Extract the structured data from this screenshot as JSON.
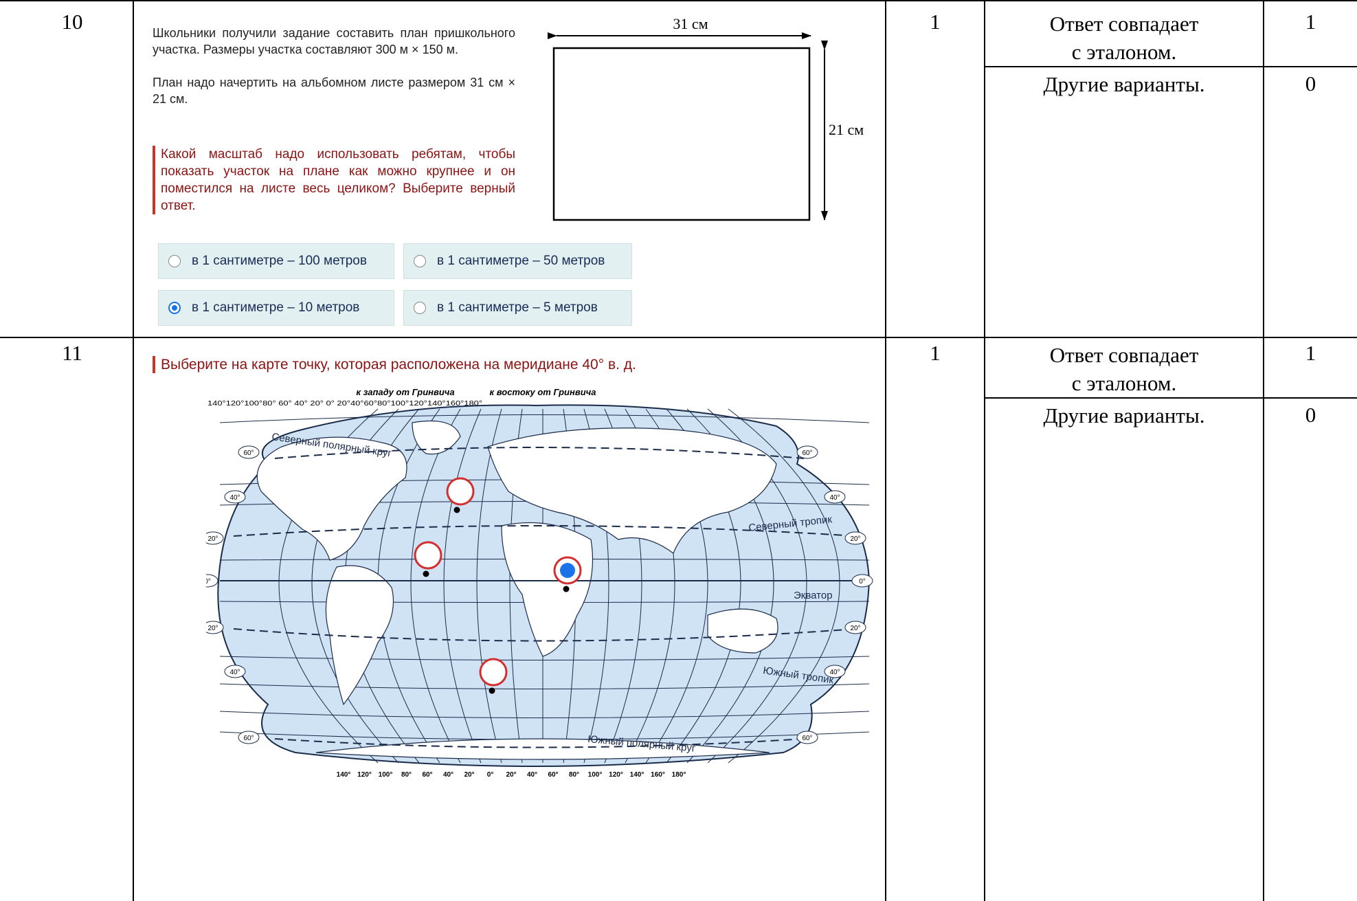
{
  "rows": [
    {
      "number": "10",
      "max_score": "1",
      "criteria": [
        {
          "text_line1": "Ответ совпадает",
          "text_line2": "с эталоном.",
          "score": "1"
        },
        {
          "text_line1": "Другие варианты.",
          "text_line2": "",
          "score": "0"
        }
      ],
      "question_text": "Школьники получили задание составить план пришкольного участка. Размеры участка составляют 300 м × 150 м.",
      "question_text2": "План надо начертить на альбомном листе размером 31 см × 21 см.",
      "prompt": "Какой масштаб надо использовать ребятам, чтобы показать участок на плане как можно крупнее и он поместился на листе весь целиком? Выберите верный ответ.",
      "diagram": {
        "width_label": "31 см",
        "height_label": "21 см"
      },
      "options": [
        {
          "label": "в 1 сантиметре – 100 метров",
          "selected": false
        },
        {
          "label": "в 1 сантиметре – 50 метров",
          "selected": false
        },
        {
          "label": "в 1 сантиметре – 10 метров",
          "selected": true
        },
        {
          "label": "в 1 сантиметре – 5 метров",
          "selected": false
        }
      ]
    },
    {
      "number": "11",
      "max_score": "1",
      "criteria": [
        {
          "text_line1": "Ответ совпадает",
          "text_line2": "с эталоном.",
          "score": "1"
        },
        {
          "text_line1": "Другие варианты.",
          "text_line2": "",
          "score": "0"
        }
      ],
      "prompt": "Выберите на карте точку, которая расположена на меридиане 40° в. д.",
      "map": {
        "west_label": "к западу от Гринвича",
        "east_label": "к востоку от Гринвича",
        "top_scale": "140°120°100°80° 60° 40° 20° 0° 20°40°60°80°100°120°140°160°180°",
        "bottom_ticks": [
          "140°",
          "120°",
          "100°",
          "80°",
          "60°",
          "40°",
          "20°",
          "0°",
          "20°",
          "40°",
          "60°",
          "80°",
          "100°",
          "120°",
          "140°",
          "160°",
          "180°"
        ],
        "lat_badges": [
          "60°",
          "40°",
          "20°",
          "0°",
          "20°",
          "40°",
          "60°"
        ],
        "labels": {
          "arctic": "Северный полярный круг",
          "cancer": "Северный тропик",
          "equator": "Экватор",
          "capricorn": "Южный тропик",
          "antarctic": "Южный полярный круг"
        },
        "points": [
          {
            "id": "p1",
            "selected": false
          },
          {
            "id": "p2",
            "selected": false
          },
          {
            "id": "p3",
            "selected": true
          },
          {
            "id": "p4",
            "selected": false
          }
        ]
      }
    }
  ]
}
